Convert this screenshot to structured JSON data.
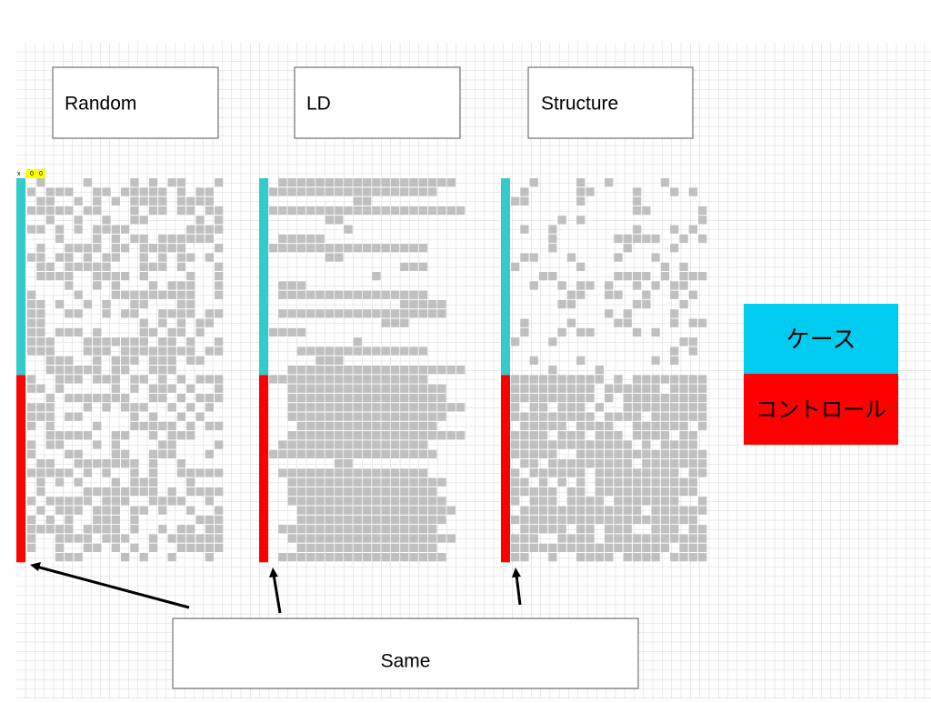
{
  "labels": {
    "random": "Random",
    "ld": "LD",
    "structure": "Structure"
  },
  "legend": {
    "case": "ケース",
    "control": "コントロール"
  },
  "corner": {
    "x": "x",
    "cells": [
      "0",
      "0"
    ]
  },
  "note": "Same"
}
